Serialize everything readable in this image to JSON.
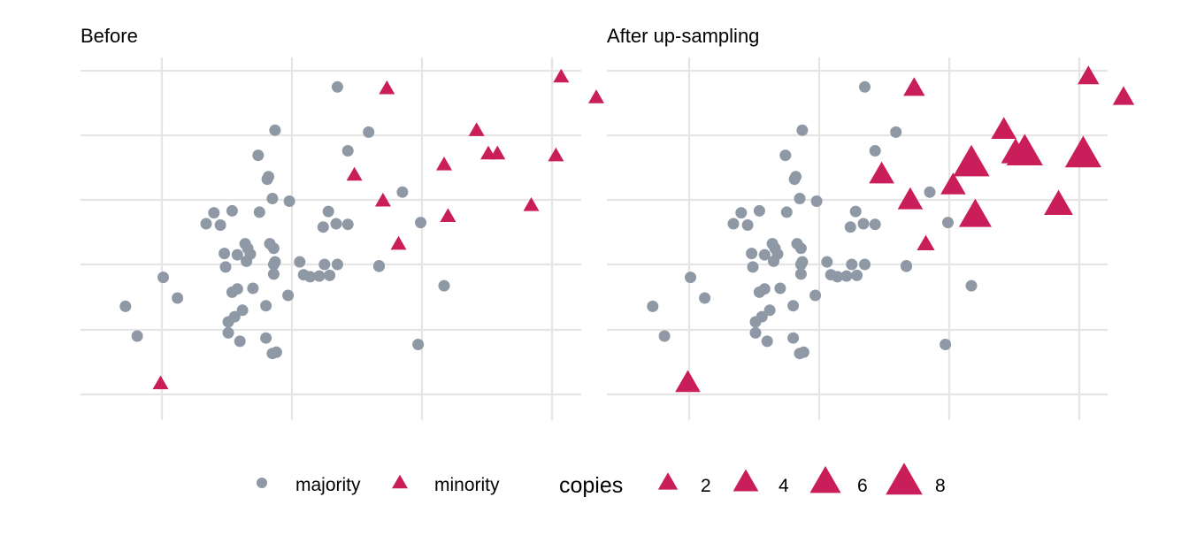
{
  "chart_data": [
    {
      "type": "scatter",
      "title": "Before",
      "xlabel": "",
      "ylabel": "",
      "xlim": [
        -1.6,
        2.2
      ],
      "ylim": [
        -2.4,
        3.0
      ],
      "grid": true,
      "series": [
        {
          "name": "majority",
          "color": "#8f99a6",
          "shape": "circle",
          "points": [
            [
              -1.28,
              -0.65
            ],
            [
              -1.19,
              -1.11
            ],
            [
              -0.99,
              -0.2
            ],
            [
              -0.88,
              -0.52
            ],
            [
              -0.66,
              0.63
            ],
            [
              -0.6,
              0.8
            ],
            [
              -0.55,
              0.61
            ],
            [
              -0.52,
              0.17
            ],
            [
              -0.51,
              -0.04
            ],
            [
              -0.49,
              -0.89
            ],
            [
              -0.49,
              -1.06
            ],
            [
              -0.46,
              -0.43
            ],
            [
              -0.46,
              0.83
            ],
            [
              -0.44,
              -0.81
            ],
            [
              -0.42,
              -0.38
            ],
            [
              -0.42,
              0.15
            ],
            [
              -0.4,
              -1.19
            ],
            [
              -0.38,
              -0.71
            ],
            [
              -0.36,
              0.32
            ],
            [
              -0.35,
              0.05
            ],
            [
              -0.34,
              0.25
            ],
            [
              -0.32,
              0.16
            ],
            [
              -0.3,
              -0.37
            ],
            [
              -0.26,
              1.69
            ],
            [
              -0.25,
              0.81
            ],
            [
              -0.2,
              -0.64
            ],
            [
              -0.2,
              -1.14
            ],
            [
              -0.19,
              1.32
            ],
            [
              -0.18,
              1.36
            ],
            [
              -0.17,
              0.32
            ],
            [
              -0.15,
              1.02
            ],
            [
              -0.15,
              -1.38
            ],
            [
              -0.14,
              -0.15
            ],
            [
              -0.14,
              0.25
            ],
            [
              -0.14,
              0.0
            ],
            [
              -0.13,
              2.08
            ],
            [
              -0.13,
              0.04
            ],
            [
              -0.12,
              -1.36
            ],
            [
              -0.03,
              -0.48
            ],
            [
              -0.02,
              0.98
            ],
            [
              0.06,
              0.04
            ],
            [
              0.09,
              -0.16
            ],
            [
              0.14,
              -0.19
            ],
            [
              0.21,
              -0.18
            ],
            [
              0.35,
              2.75
            ],
            [
              0.34,
              0.63
            ],
            [
              0.25,
              0.0
            ],
            [
              0.24,
              0.58
            ],
            [
              0.28,
              0.82
            ],
            [
              0.29,
              -0.17
            ],
            [
              0.35,
              0.0
            ],
            [
              0.43,
              1.76
            ],
            [
              0.43,
              0.62
            ],
            [
              0.59,
              2.05
            ],
            [
              0.67,
              -0.02
            ],
            [
              0.67,
              -0.03
            ],
            [
              0.85,
              1.12
            ],
            [
              0.99,
              0.65
            ],
            [
              0.97,
              -1.24
            ],
            [
              1.17,
              -0.33
            ]
          ]
        },
        {
          "name": "minority",
          "color": "#c91e5a",
          "shape": "triangle",
          "points": [
            [
              -1.01,
              -1.86
            ],
            [
              0.48,
              1.37
            ],
            [
              0.7,
              0.97
            ],
            [
              0.73,
              2.71
            ],
            [
              0.82,
              0.3
            ],
            [
              1.17,
              1.53
            ],
            [
              1.2,
              0.73
            ],
            [
              1.42,
              2.06
            ],
            [
              1.51,
              1.7
            ],
            [
              1.58,
              1.7
            ],
            [
              1.84,
              0.9
            ],
            [
              2.07,
              2.89
            ],
            [
              2.03,
              1.67
            ],
            [
              2.34,
              2.57
            ]
          ]
        }
      ]
    },
    {
      "type": "scatter",
      "title": "After up-sampling",
      "xlabel": "",
      "ylabel": "",
      "xlim": [
        -1.6,
        2.2
      ],
      "ylim": [
        -2.4,
        3.0
      ],
      "grid": true,
      "series": [
        {
          "name": "majority",
          "color": "#8f99a6",
          "shape": "circle",
          "points": [
            [
              -1.28,
              -0.65
            ],
            [
              -1.19,
              -1.11
            ],
            [
              -0.99,
              -0.2
            ],
            [
              -0.88,
              -0.52
            ],
            [
              -0.66,
              0.63
            ],
            [
              -0.6,
              0.8
            ],
            [
              -0.55,
              0.61
            ],
            [
              -0.52,
              0.17
            ],
            [
              -0.51,
              -0.04
            ],
            [
              -0.49,
              -0.89
            ],
            [
              -0.49,
              -1.06
            ],
            [
              -0.46,
              -0.43
            ],
            [
              -0.46,
              0.83
            ],
            [
              -0.44,
              -0.81
            ],
            [
              -0.42,
              -0.38
            ],
            [
              -0.42,
              0.15
            ],
            [
              -0.4,
              -1.19
            ],
            [
              -0.38,
              -0.71
            ],
            [
              -0.36,
              0.32
            ],
            [
              -0.35,
              0.05
            ],
            [
              -0.34,
              0.25
            ],
            [
              -0.32,
              0.16
            ],
            [
              -0.3,
              -0.37
            ],
            [
              -0.26,
              1.69
            ],
            [
              -0.25,
              0.81
            ],
            [
              -0.2,
              -0.64
            ],
            [
              -0.2,
              -1.14
            ],
            [
              -0.19,
              1.32
            ],
            [
              -0.18,
              1.36
            ],
            [
              -0.17,
              0.32
            ],
            [
              -0.15,
              1.02
            ],
            [
              -0.15,
              -1.38
            ],
            [
              -0.14,
              -0.15
            ],
            [
              -0.14,
              0.25
            ],
            [
              -0.14,
              0.0
            ],
            [
              -0.13,
              2.08
            ],
            [
              -0.13,
              0.04
            ],
            [
              -0.12,
              -1.36
            ],
            [
              -0.03,
              -0.48
            ],
            [
              -0.02,
              0.98
            ],
            [
              0.06,
              0.04
            ],
            [
              0.09,
              -0.16
            ],
            [
              0.14,
              -0.19
            ],
            [
              0.21,
              -0.18
            ],
            [
              0.35,
              2.75
            ],
            [
              0.34,
              0.63
            ],
            [
              0.25,
              0.0
            ],
            [
              0.24,
              0.58
            ],
            [
              0.28,
              0.82
            ],
            [
              0.29,
              -0.17
            ],
            [
              0.35,
              0.0
            ],
            [
              0.43,
              1.76
            ],
            [
              0.43,
              0.62
            ],
            [
              0.59,
              2.05
            ],
            [
              0.67,
              -0.02
            ],
            [
              0.67,
              -0.03
            ],
            [
              0.85,
              1.12
            ],
            [
              0.99,
              0.65
            ],
            [
              0.97,
              -1.24
            ],
            [
              1.17,
              -0.33
            ]
          ]
        },
        {
          "name": "minority",
          "color": "#c91e5a",
          "shape": "triangle",
          "points": [
            [
              -1.01,
              -1.86,
              3
            ],
            [
              0.48,
              1.37,
              3
            ],
            [
              0.7,
              0.97,
              3
            ],
            [
              0.73,
              2.71,
              2
            ],
            [
              0.82,
              0.3,
              1
            ],
            [
              1.17,
              1.53,
              6
            ],
            [
              1.2,
              0.73,
              5
            ],
            [
              1.42,
              2.06,
              3
            ],
            [
              1.51,
              1.7,
              4
            ],
            [
              1.58,
              1.7,
              6
            ],
            [
              1.84,
              0.9,
              4
            ],
            [
              2.07,
              2.89,
              2
            ],
            [
              2.03,
              1.67,
              6
            ],
            [
              2.34,
              2.57,
              2
            ],
            [
              1.03,
              1.2,
              3
            ]
          ]
        }
      ]
    }
  ],
  "legend": {
    "placement": "bottom",
    "class_items": [
      {
        "label": "majority",
        "shape": "circle",
        "color": "#8f99a6"
      },
      {
        "label": "minority",
        "shape": "triangle",
        "color": "#c91e5a"
      }
    ],
    "copies_title": "copies",
    "copies_items": [
      {
        "label": "2",
        "value": 2
      },
      {
        "label": "4",
        "value": 4
      },
      {
        "label": "6",
        "value": 6
      },
      {
        "label": "8",
        "value": 8
      }
    ]
  }
}
